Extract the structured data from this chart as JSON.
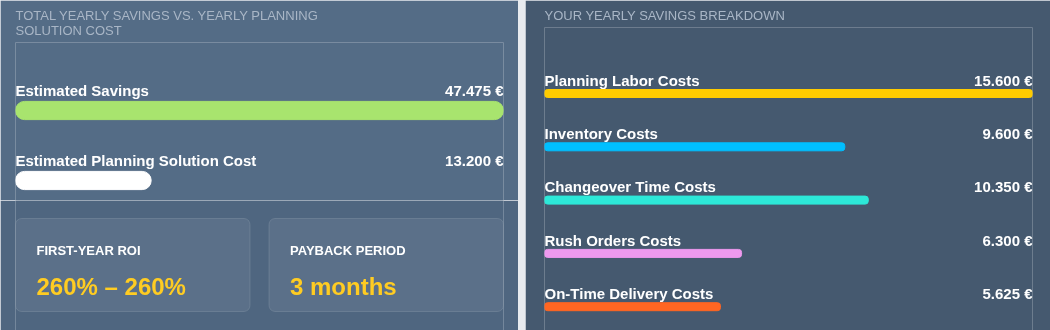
{
  "chart_data": [
    {
      "type": "bar",
      "orientation": "horizontal",
      "title": "TOTAL YEARLY SAVINGS VS. YEARLY PLANNING SOLUTION COST",
      "categories": [
        "Estimated Savings",
        "Estimated Planning Solution Cost"
      ],
      "values": [
        47475,
        13200
      ],
      "colors": [
        "#a8e46e",
        "#ffffff"
      ],
      "value_labels": [
        "47.475 €",
        "13.200 €"
      ],
      "xlim": [
        0,
        47475
      ],
      "tick_labels": false
    },
    {
      "type": "other",
      "annotations": [
        "FIRST-YEAR ROI",
        "260% – 260%",
        "PAYBACK PERIOD",
        "3 months"
      ]
    },
    {
      "type": "bar",
      "orientation": "horizontal",
      "title": "YOUR YEARLY SAVINGS BREAKDOWN",
      "categories": [
        "Planning Labor Costs",
        "Inventory Costs",
        "Changeover Time Costs",
        "Rush Orders Costs",
        "On-Time Delivery Costs"
      ],
      "values": [
        15600,
        9600,
        10350,
        6300,
        5625
      ],
      "colors": [
        "#ffcc00",
        "#00bfff",
        "#2de8d8",
        "#ee99ee",
        "#ff6622"
      ],
      "value_labels": [
        "15.600 €",
        "9.600 €",
        "10.350 €",
        "6.300 €",
        "5.625 €"
      ],
      "xlim": [
        0,
        15600
      ],
      "tick_labels": false
    }
  ]
}
